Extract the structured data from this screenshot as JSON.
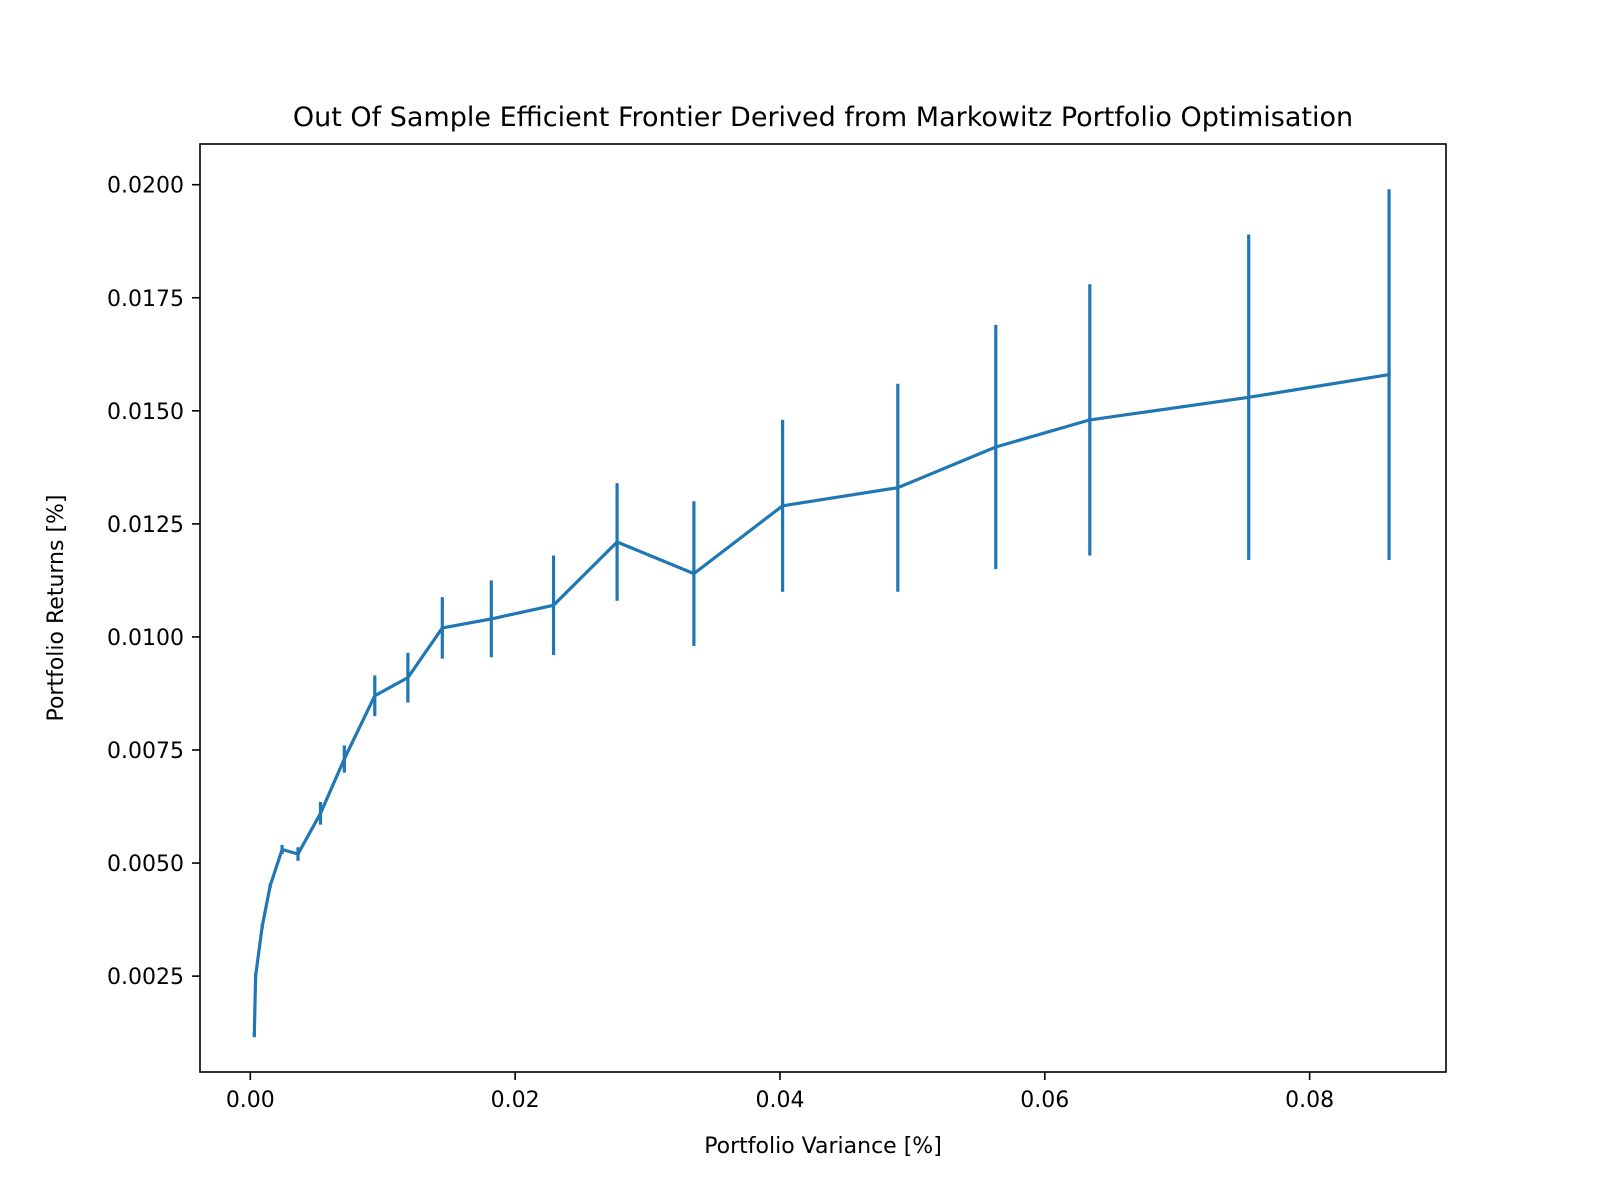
{
  "chart_data": {
    "type": "line",
    "title": "Out Of Sample Efficient Frontier Derived from Markowitz Portfolio Optimisation",
    "xlabel": "Portfolio Variance [%]",
    "ylabel": "Portfolio Returns [%]",
    "xlim": [
      -0.0038,
      0.0903
    ],
    "ylim": [
      0.00038,
      0.0209
    ],
    "xticks": [
      0.0,
      0.02,
      0.04,
      0.06,
      0.08
    ],
    "xtick_labels": [
      "0.00",
      "0.02",
      "0.04",
      "0.06",
      "0.08"
    ],
    "yticks": [
      0.0025,
      0.005,
      0.0075,
      0.01,
      0.0125,
      0.015,
      0.0175,
      0.02
    ],
    "ytick_labels": [
      "0.0025",
      "0.0050",
      "0.0075",
      "0.0100",
      "0.0125",
      "0.0150",
      "0.0175",
      "0.0200"
    ],
    "grid": false,
    "color": "#1f77b4",
    "series": [
      {
        "x": [
          0.0003,
          0.0004,
          0.0009,
          0.0015,
          0.0024,
          0.0036,
          0.0053,
          0.0071,
          0.0094,
          0.0119,
          0.0145,
          0.0182,
          0.0229,
          0.0277,
          0.0335,
          0.0402,
          0.0489,
          0.0563,
          0.0634,
          0.0754,
          0.086
        ],
        "y": [
          0.0012,
          0.0025,
          0.0036,
          0.0045,
          0.0053,
          0.0052,
          0.0061,
          0.0073,
          0.0087,
          0.0091,
          0.0102,
          0.0104,
          0.0107,
          0.0121,
          0.0114,
          0.0129,
          0.0133,
          0.0142,
          0.0148,
          0.0153,
          0.0158
        ],
        "yerr": [
          5e-05,
          5e-05,
          5e-05,
          5e-05,
          0.0001,
          0.00015,
          0.00025,
          0.0003,
          0.00045,
          0.00055,
          0.00068,
          0.00085,
          0.0011,
          0.0013,
          0.0016,
          0.0019,
          0.0023,
          0.0027,
          0.003,
          0.0036,
          0.0041
        ]
      }
    ]
  }
}
